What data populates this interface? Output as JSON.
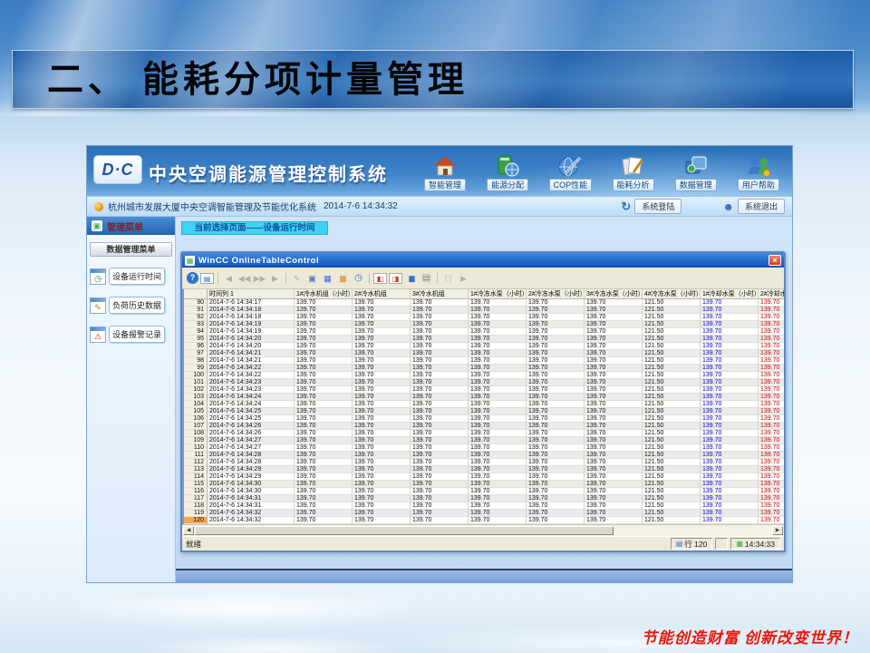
{
  "slide": {
    "title": "二、 能耗分项计量管理",
    "motto": "节能创造财富 创新改变世界！"
  },
  "app": {
    "logo_text": "D·C",
    "app_title": "中央空调能源管理控制系统",
    "nav": [
      {
        "label": "智能管理"
      },
      {
        "label": "能源分配"
      },
      {
        "label": "COP性能"
      },
      {
        "label": "能耗分析"
      },
      {
        "label": "数据管理"
      },
      {
        "label": "用户帮助"
      }
    ],
    "statusbar": {
      "system_name": "杭州城市发展大厦中央空调智能管理及节能优化系统",
      "datetime": "2014-7-6 14:34:32",
      "login": "系统登陆",
      "logout": "系统退出"
    },
    "sidebar": {
      "header": "管理菜单",
      "submenu": "数据管理菜单",
      "items": [
        {
          "label": "设备运行时间"
        },
        {
          "label": "负荷历史数据"
        },
        {
          "label": "设备报警记录"
        }
      ]
    },
    "main": {
      "breadcrumb": "当前选择页面——设备运行时间"
    },
    "wincc": {
      "window_title": "WinCC OnlineTableControl",
      "status": {
        "ready": "就绪",
        "row_label": "行",
        "row_value": "120",
        "time": "14:34:33"
      },
      "table": {
        "columns": [
          "时间列 1",
          "1#冷水机组（小时）",
          "2#冷水机组",
          "3#冷水机组",
          "1#冷冻水泵（小时）",
          "2#冷冻水泵（小时）",
          "3#冷冻水泵（小时）",
          "4#冷冻水泵（小时）",
          "1#冷却水泵（小时）",
          "2#冷却水泵（小时）"
        ],
        "selected_row": "120",
        "value_colors": {
          "9": "#0000cc",
          "10": "#cc0000"
        },
        "rows": [
          [
            "90",
            "2014-7-6 14:34:17",
            "139.70",
            "139.70",
            "139.70",
            "139.70",
            "139.70",
            "139.70",
            "121.50",
            "139.70",
            "139.70"
          ],
          [
            "91",
            "2014-7-6 14:34:18",
            "139.70",
            "139.70",
            "139.70",
            "139.70",
            "139.70",
            "139.70",
            "121.50",
            "139.70",
            "139.70"
          ],
          [
            "92",
            "2014-7-6 14:34:18",
            "139.70",
            "139.70",
            "139.70",
            "139.70",
            "139.70",
            "139.70",
            "121.50",
            "139.70",
            "139.70"
          ],
          [
            "93",
            "2014-7-6 14:34:19",
            "139.70",
            "139.70",
            "139.70",
            "139.70",
            "139.70",
            "139.70",
            "121.50",
            "139.70",
            "139.70"
          ],
          [
            "94",
            "2014-7-6 14:34:19",
            "139.70",
            "139.70",
            "139.70",
            "139.70",
            "139.70",
            "139.70",
            "121.50",
            "139.70",
            "139.70"
          ],
          [
            "95",
            "2014-7-6 14:34:20",
            "139.70",
            "139.70",
            "139.70",
            "139.70",
            "139.70",
            "139.70",
            "121.50",
            "139.70",
            "139.70"
          ],
          [
            "96",
            "2014-7-6 14:34:20",
            "139.70",
            "139.70",
            "139.70",
            "139.70",
            "139.70",
            "139.70",
            "121.50",
            "139.70",
            "139.70"
          ],
          [
            "97",
            "2014-7-6 14:34:21",
            "139.70",
            "139.70",
            "139.70",
            "139.70",
            "139.70",
            "139.70",
            "121.50",
            "139.70",
            "139.70"
          ],
          [
            "98",
            "2014-7-6 14:34:21",
            "139.70",
            "139.70",
            "139.70",
            "139.70",
            "139.70",
            "139.70",
            "121.50",
            "139.70",
            "139.70"
          ],
          [
            "99",
            "2014-7-6 14:34:22",
            "139.70",
            "139.70",
            "139.70",
            "139.70",
            "139.70",
            "139.70",
            "121.50",
            "139.70",
            "139.70"
          ],
          [
            "100",
            "2014-7-6 14:34:22",
            "139.70",
            "139.70",
            "139.70",
            "139.70",
            "139.70",
            "139.70",
            "121.50",
            "139.70",
            "139.70"
          ],
          [
            "101",
            "2014-7-6 14:34:23",
            "139.70",
            "139.70",
            "139.70",
            "139.70",
            "139.70",
            "139.70",
            "121.50",
            "139.70",
            "139.70"
          ],
          [
            "102",
            "2014-7-6 14:34:23",
            "139.70",
            "139.70",
            "139.70",
            "139.70",
            "139.70",
            "139.70",
            "121.50",
            "139.70",
            "139.70"
          ],
          [
            "103",
            "2014-7-6 14:34:24",
            "139.70",
            "139.70",
            "139.70",
            "139.70",
            "139.70",
            "139.70",
            "121.50",
            "139.70",
            "139.70"
          ],
          [
            "104",
            "2014-7-6 14:34:24",
            "139.70",
            "139.70",
            "139.70",
            "139.70",
            "139.70",
            "139.70",
            "121.50",
            "139.70",
            "139.70"
          ],
          [
            "105",
            "2014-7-6 14:34:25",
            "139.70",
            "139.70",
            "139.70",
            "139.70",
            "139.70",
            "139.70",
            "121.50",
            "139.70",
            "139.70"
          ],
          [
            "106",
            "2014-7-6 14:34:25",
            "139.70",
            "139.70",
            "139.70",
            "139.70",
            "139.70",
            "139.70",
            "121.50",
            "139.70",
            "139.70"
          ],
          [
            "107",
            "2014-7-6 14:34:26",
            "139.70",
            "139.70",
            "139.70",
            "139.70",
            "139.70",
            "139.70",
            "121.50",
            "139.70",
            "139.70"
          ],
          [
            "108",
            "2014-7-6 14:34:26",
            "139.70",
            "139.70",
            "139.70",
            "139.70",
            "139.70",
            "139.70",
            "121.50",
            "139.70",
            "139.70"
          ],
          [
            "109",
            "2014-7-6 14:34:27",
            "139.70",
            "139.70",
            "139.70",
            "139.70",
            "139.70",
            "139.70",
            "121.50",
            "139.70",
            "139.70"
          ],
          [
            "110",
            "2014-7-6 14:34:27",
            "139.70",
            "139.70",
            "139.70",
            "139.70",
            "139.70",
            "139.70",
            "121.50",
            "139.70",
            "139.70"
          ],
          [
            "111",
            "2014-7-6 14:34:28",
            "139.70",
            "139.70",
            "139.70",
            "139.70",
            "139.70",
            "139.70",
            "121.50",
            "139.70",
            "139.70"
          ],
          [
            "112",
            "2014-7-6 14:34:28",
            "139.70",
            "139.70",
            "139.70",
            "139.70",
            "139.70",
            "139.70",
            "121.50",
            "139.70",
            "139.70"
          ],
          [
            "113",
            "2014-7-6 14:34:29",
            "139.70",
            "139.70",
            "139.70",
            "139.70",
            "139.70",
            "139.70",
            "121.50",
            "139.70",
            "139.70"
          ],
          [
            "114",
            "2014-7-6 14:34:29",
            "139.70",
            "139.70",
            "139.70",
            "139.70",
            "139.70",
            "139.70",
            "121.50",
            "139.70",
            "139.70"
          ],
          [
            "115",
            "2014-7-6 14:34:30",
            "139.70",
            "139.70",
            "139.70",
            "139.70",
            "139.70",
            "139.70",
            "121.50",
            "139.70",
            "139.70"
          ],
          [
            "116",
            "2014-7-6 14:34:30",
            "139.70",
            "139.70",
            "139.70",
            "139.70",
            "139.70",
            "139.70",
            "121.50",
            "139.70",
            "139.70"
          ],
          [
            "117",
            "2014-7-6 14:34:31",
            "139.70",
            "139.70",
            "139.70",
            "139.70",
            "139.70",
            "139.70",
            "121.50",
            "139.70",
            "139.70"
          ],
          [
            "118",
            "2014-7-6 14:34:31",
            "139.70",
            "139.70",
            "139.70",
            "139.70",
            "139.70",
            "139.70",
            "121.50",
            "139.70",
            "139.70"
          ],
          [
            "119",
            "2014-7-6 14:34:32",
            "139.70",
            "139.70",
            "139.70",
            "139.70",
            "139.70",
            "139.70",
            "121.50",
            "139.70",
            "139.70"
          ],
          [
            "120",
            "2014-7-6 14:34:32",
            "139.70",
            "139.70",
            "139.70",
            "139.70",
            "139.70",
            "139.70",
            "121.50",
            "139.70",
            "139.70"
          ]
        ]
      }
    }
  },
  "icons": {
    "help": "?",
    "calendar": "▤",
    "nav_first": "◀",
    "nav_prev": "◀◀",
    "nav_next": "▶▶",
    "nav_last": "▶",
    "edit": "✎",
    "copy": "▣",
    "columns": "▦",
    "gift": "▩",
    "clock": "◷",
    "export_in": "◧",
    "export_out": "◨",
    "pause": "▮▮",
    "printer": "▤",
    "brackets": "[-]",
    "tail": "▶",
    "refresh": "↻",
    "user": "☻",
    "close": "×",
    "win_table": "▦",
    "sb_header": "▣",
    "clock_small": "◷",
    "pencil_small": "✎",
    "warn_small": "⚠",
    "status_row": "▤",
    "status_time": "▦",
    "scroll_left": "◀",
    "scroll_right": "▶"
  },
  "colors": {
    "accent_blue": "#2a70ba",
    "tab_cyan": "#3fd2f2",
    "value_blue": "#0000cc",
    "value_red": "#cc0000",
    "selected_row_orange": "#f7a64f",
    "motto_red": "#e8180c"
  }
}
